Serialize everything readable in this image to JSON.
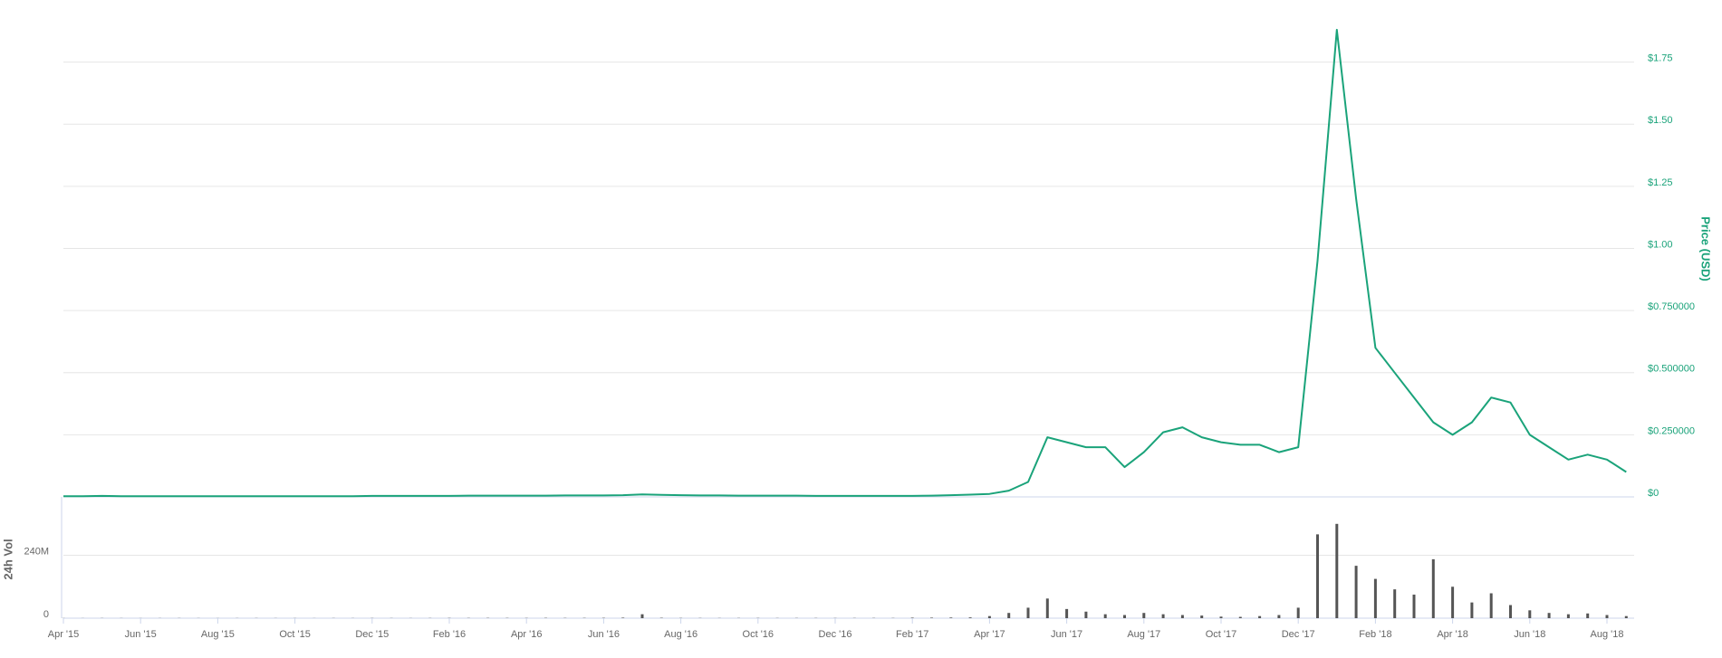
{
  "chart_data": {
    "type": "line",
    "categories": [
      "Apr '15",
      null,
      null,
      null,
      "Jun '15",
      null,
      null,
      null,
      "Aug '15",
      null,
      null,
      null,
      "Oct '15",
      null,
      null,
      null,
      "Dec '15",
      null,
      null,
      null,
      "Feb '16",
      null,
      null,
      null,
      "Apr '16",
      null,
      null,
      null,
      "Jun '16",
      null,
      null,
      null,
      "Aug '16",
      null,
      null,
      null,
      "Oct '16",
      null,
      null,
      null,
      "Dec '16",
      null,
      null,
      null,
      "Feb '17",
      null,
      null,
      null,
      "Apr '17",
      null,
      null,
      null,
      "Jun '17",
      null,
      null,
      null,
      "Aug '17",
      null,
      null,
      null,
      "Oct '17",
      null,
      null,
      null,
      "Dec '17",
      null,
      null,
      null,
      "Feb '18",
      null,
      null,
      null,
      "Apr '18",
      null,
      null,
      null,
      "Jun '18",
      null,
      null,
      null,
      "Aug '18",
      null
    ],
    "series": [
      {
        "name": "Price (USD)",
        "color": "#1aa37a",
        "values": [
          0.003,
          0.003,
          0.004,
          0.003,
          0.003,
          0.003,
          0.003,
          0.003,
          0.003,
          0.003,
          0.003,
          0.003,
          0.003,
          0.003,
          0.003,
          0.003,
          0.004,
          0.004,
          0.004,
          0.004,
          0.004,
          0.005,
          0.005,
          0.005,
          0.005,
          0.005,
          0.006,
          0.006,
          0.006,
          0.007,
          0.01,
          0.008,
          0.007,
          0.006,
          0.006,
          0.005,
          0.005,
          0.005,
          0.005,
          0.004,
          0.004,
          0.004,
          0.004,
          0.004,
          0.004,
          0.005,
          0.007,
          0.009,
          0.012,
          0.025,
          0.06,
          0.24,
          0.22,
          0.2,
          0.2,
          0.12,
          0.18,
          0.26,
          0.28,
          0.24,
          0.22,
          0.21,
          0.21,
          0.18,
          0.2,
          0.95,
          1.88,
          1.2,
          0.6,
          0.5,
          0.4,
          0.3,
          0.25,
          0.3,
          0.4,
          0.38,
          0.25,
          0.2,
          0.15,
          0.17,
          0.15,
          0.1
        ]
      },
      {
        "name": "24h Vol",
        "color": "#555555",
        "axis": "y2",
        "type": "bar",
        "values": [
          500000,
          400000,
          600000,
          500000,
          400000,
          500000,
          600000,
          500000,
          400000,
          500000,
          600000,
          500000,
          500000,
          400000,
          600000,
          500000,
          700000,
          600000,
          500000,
          700000,
          1000000,
          900000,
          1100000,
          1000000,
          900000,
          1200000,
          1000000,
          1100000,
          1300000,
          2000000,
          15000000,
          1500000,
          900000,
          800000,
          700000,
          800000,
          900000,
          700000,
          800000,
          800000,
          700000,
          800000,
          900000,
          800000,
          2000000,
          2000000,
          2500000,
          3000000,
          8000000,
          20000000,
          40000000,
          75000000,
          35000000,
          25000000,
          15000000,
          12000000,
          20000000,
          15000000,
          12000000,
          10000000,
          6000000,
          5000000,
          8000000,
          12000000,
          40000000,
          320000000,
          360000000,
          200000000,
          150000000,
          110000000,
          90000000,
          225000000,
          120000000,
          60000000,
          95000000,
          50000000,
          30000000,
          20000000,
          15000000,
          18000000,
          12000000,
          8000000
        ]
      }
    ],
    "ylim": [
      0,
      2
    ],
    "yticks": [
      {
        "value": 0,
        "label": "$0"
      },
      {
        "value": 0.25,
        "label": "$0.250000"
      },
      {
        "value": 0.5,
        "label": "$0.500000"
      },
      {
        "value": 0.75,
        "label": "$0.750000"
      },
      {
        "value": 1,
        "label": "$1.00"
      },
      {
        "value": 1.25,
        "label": "$1.25"
      },
      {
        "value": 1.5,
        "label": "$1.50"
      },
      {
        "value": 1.75,
        "label": "$1.75"
      }
    ],
    "y2lim": [
      0,
      463000000
    ],
    "y2ticks": [
      0,
      {
        "value": 240000000,
        "label": "240M"
      }
    ],
    "grid": true
  }
}
